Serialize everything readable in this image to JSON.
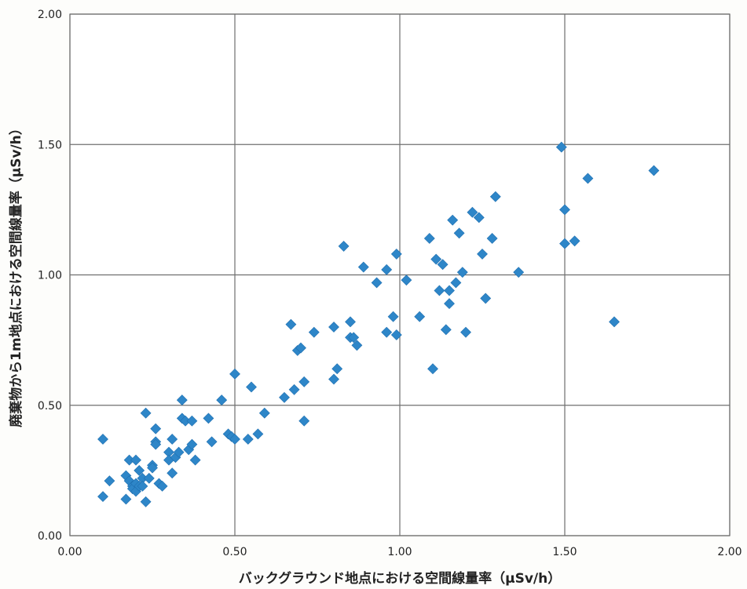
{
  "chart_data": {
    "type": "scatter",
    "title": "",
    "xlabel": "バックグラウンド地点における空間線量率（μSv/h）",
    "ylabel": "廃棄物から1m地点における空間線量率（μSv/h）",
    "xlim": [
      0,
      2
    ],
    "ylim": [
      0,
      2
    ],
    "xticks": [
      "0.00",
      "0.50",
      "1.00",
      "1.50",
      "2.00"
    ],
    "yticks": [
      "0.00",
      "0.50",
      "1.00",
      "1.50",
      "2.00"
    ],
    "grid": true,
    "marker": "diamond",
    "marker_color": "#2e86c8",
    "series": [
      {
        "x": [
          0.1,
          0.1,
          0.12,
          0.17,
          0.17,
          0.18,
          0.18,
          0.19,
          0.19,
          0.2,
          0.2,
          0.2,
          0.21,
          0.21,
          0.22,
          0.22,
          0.23,
          0.23,
          0.24,
          0.25,
          0.25,
          0.26,
          0.26,
          0.26,
          0.27,
          0.28,
          0.3,
          0.3,
          0.31,
          0.31,
          0.32,
          0.33,
          0.34,
          0.34,
          0.35,
          0.36,
          0.37,
          0.37,
          0.38,
          0.42,
          0.43,
          0.46,
          0.48,
          0.49,
          0.5,
          0.5,
          0.54,
          0.55,
          0.57,
          0.59,
          0.65,
          0.67,
          0.68,
          0.69,
          0.7,
          0.71,
          0.71,
          0.74,
          0.8,
          0.8,
          0.81,
          0.83,
          0.85,
          0.85,
          0.86,
          0.87,
          0.89,
          0.93,
          0.96,
          0.96,
          0.98,
          0.99,
          0.99,
          1.02,
          1.06,
          1.09,
          1.1,
          1.11,
          1.12,
          1.13,
          1.14,
          1.15,
          1.15,
          1.16,
          1.17,
          1.18,
          1.19,
          1.2,
          1.22,
          1.24,
          1.25,
          1.26,
          1.28,
          1.29,
          1.36,
          1.49,
          1.5,
          1.5,
          1.53,
          1.57,
          1.65,
          1.77
        ],
        "y": [
          0.37,
          0.15,
          0.21,
          0.23,
          0.14,
          0.29,
          0.21,
          0.19,
          0.18,
          0.29,
          0.2,
          0.17,
          0.25,
          0.19,
          0.22,
          0.19,
          0.47,
          0.13,
          0.22,
          0.27,
          0.26,
          0.41,
          0.36,
          0.35,
          0.2,
          0.19,
          0.32,
          0.29,
          0.37,
          0.24,
          0.3,
          0.32,
          0.52,
          0.45,
          0.44,
          0.33,
          0.44,
          0.35,
          0.29,
          0.45,
          0.36,
          0.52,
          0.39,
          0.38,
          0.62,
          0.37,
          0.37,
          0.57,
          0.39,
          0.47,
          0.53,
          0.81,
          0.56,
          0.71,
          0.72,
          0.59,
          0.44,
          0.78,
          0.8,
          0.6,
          0.64,
          1.11,
          0.82,
          0.76,
          0.76,
          0.73,
          1.03,
          0.97,
          1.02,
          0.78,
          0.84,
          1.08,
          0.77,
          0.98,
          0.84,
          1.14,
          0.64,
          1.06,
          0.94,
          1.04,
          0.79,
          0.94,
          0.89,
          1.21,
          0.97,
          1.16,
          1.01,
          0.78,
          1.24,
          1.22,
          1.08,
          0.91,
          1.14,
          1.3,
          1.01,
          1.49,
          1.12,
          1.25,
          1.13,
          1.37,
          0.82,
          1.4
        ]
      }
    ]
  }
}
